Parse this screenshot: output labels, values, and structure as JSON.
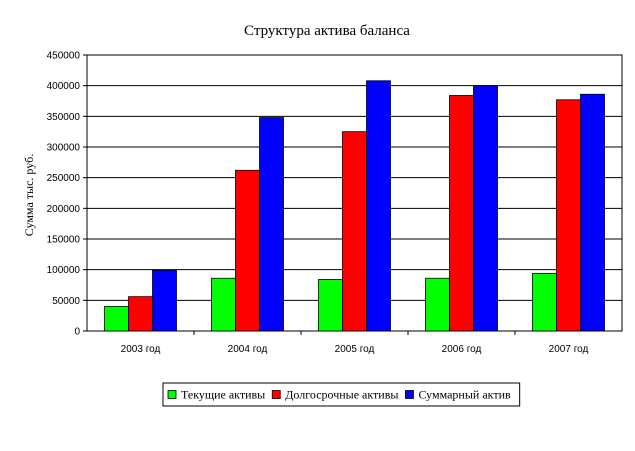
{
  "chart_data": {
    "type": "bar",
    "title": "Структура актива баланса",
    "xlabel": "",
    "ylabel": "Сумма тыс. руб.",
    "categories": [
      "2003 год",
      "2004 год",
      "2005 год",
      "2006 год",
      "2007 год"
    ],
    "series": [
      {
        "name": "Текущие активы",
        "color": "#00ff00",
        "values": [
          40000,
          86000,
          84000,
          86000,
          94000
        ]
      },
      {
        "name": "Долгосрочные активы",
        "color": "#ff0000",
        "values": [
          56000,
          262000,
          325000,
          384000,
          377000
        ]
      },
      {
        "name": "Суммарный актив",
        "color": "#0000ff",
        "values": [
          99000,
          348000,
          408000,
          400000,
          386000
        ]
      }
    ],
    "ylim": [
      0,
      450000
    ],
    "yticks": [
      "0",
      "50000",
      "100000",
      "150000",
      "200000",
      "250000",
      "300000",
      "350000",
      "400000",
      "450000"
    ],
    "grid": true,
    "legend": "bottom"
  }
}
